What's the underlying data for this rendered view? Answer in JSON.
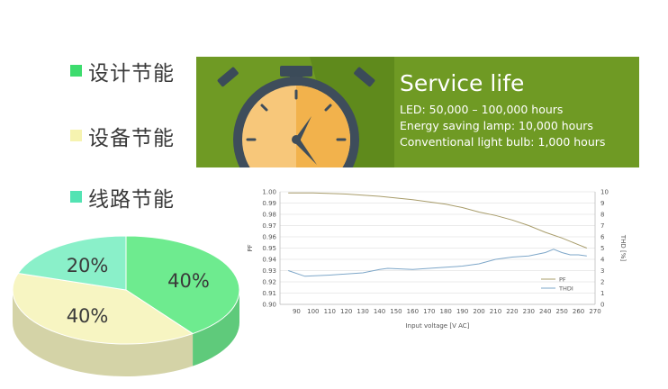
{
  "legend": [
    {
      "label": "设计节能",
      "color": "#3ddc6e"
    },
    {
      "label": "设备节能",
      "color": "#f6f3b0"
    },
    {
      "label": "线路节能",
      "color": "#53e3b3"
    }
  ],
  "service": {
    "title": "Service life",
    "lines": [
      "LED: 50,000 – 100,000 hours",
      "Energy saving lamp: 10,000 hours",
      "Conventional light bulb: 1,000 hours"
    ],
    "background": "#6f9a24"
  },
  "chart_data": [
    {
      "type": "pie",
      "categories": [
        "设计节能",
        "设备节能",
        "线路节能"
      ],
      "values": [
        40,
        40,
        20
      ],
      "labels": [
        "40%",
        "40%",
        "20%"
      ],
      "colors": [
        "#6eeb8f",
        "#f7f5c2",
        "#8af0c9"
      ],
      "style": "3d"
    },
    {
      "type": "line",
      "xlabel": "Input voltage [V AC]",
      "ylabel": "PF",
      "y2label": "THD [%]",
      "x_ticks": [
        90,
        100,
        110,
        120,
        130,
        140,
        150,
        160,
        170,
        180,
        190,
        200,
        210,
        220,
        230,
        240,
        250,
        260,
        270
      ],
      "xlim": [
        80,
        270
      ],
      "ylim": [
        0.9,
        1.0
      ],
      "y_ticks": [
        "0.90",
        "0.91",
        "0.92",
        "0.93",
        "0.94",
        "0.95",
        "0.96",
        "0.97",
        "0.98",
        "0.99",
        "1.00"
      ],
      "y2lim": [
        0,
        10
      ],
      "y2_ticks": [
        "0",
        "1",
        "2",
        "3",
        "4",
        "5",
        "6",
        "7",
        "8",
        "9",
        "10"
      ],
      "legend_position": "bottom-right",
      "series": [
        {
          "name": "PF",
          "axis": "left",
          "color": "#a89c6a",
          "x": [
            85,
            100,
            120,
            140,
            160,
            180,
            190,
            200,
            210,
            220,
            230,
            240,
            250,
            260,
            265
          ],
          "y": [
            0.999,
            0.999,
            0.998,
            0.996,
            0.993,
            0.989,
            0.986,
            0.982,
            0.979,
            0.975,
            0.97,
            0.964,
            0.959,
            0.953,
            0.95
          ]
        },
        {
          "name": "THDI",
          "axis": "right",
          "color": "#7ea7c9",
          "x": [
            85,
            95,
            110,
            130,
            140,
            145,
            160,
            170,
            180,
            190,
            200,
            210,
            220,
            230,
            240,
            245,
            250,
            255,
            260,
            265
          ],
          "y": [
            3.0,
            2.5,
            2.6,
            2.8,
            3.1,
            3.2,
            3.1,
            3.2,
            3.3,
            3.4,
            3.6,
            4.0,
            4.2,
            4.3,
            4.6,
            4.9,
            4.6,
            4.4,
            4.4,
            4.3
          ]
        }
      ]
    }
  ]
}
